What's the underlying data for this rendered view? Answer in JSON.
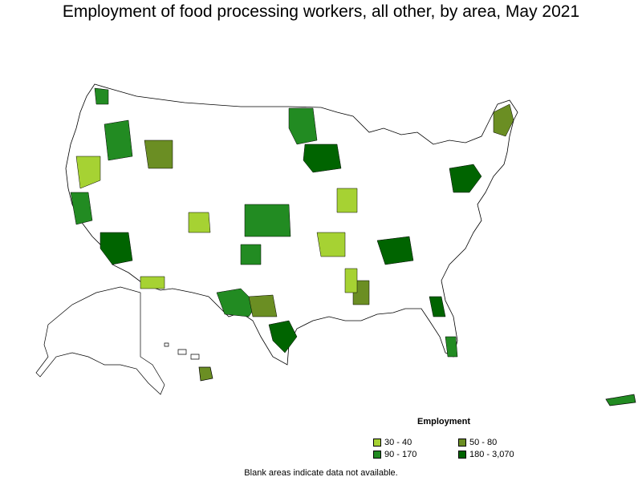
{
  "title": "Employment of food processing workers, all other, by area, May 2021",
  "legend": {
    "title": "Employment",
    "items": [
      {
        "label": "30 - 40",
        "color": "#a6d233"
      },
      {
        "label": "50 - 80",
        "color": "#6b8e23"
      },
      {
        "label": "90 - 170",
        "color": "#228b22"
      },
      {
        "label": "180 - 3,070",
        "color": "#006400"
      }
    ]
  },
  "footnote": "Blank areas indicate data not available.",
  "colors": {
    "background": "#ffffff",
    "outline": "#000000",
    "no_data": "#ffffff"
  }
}
